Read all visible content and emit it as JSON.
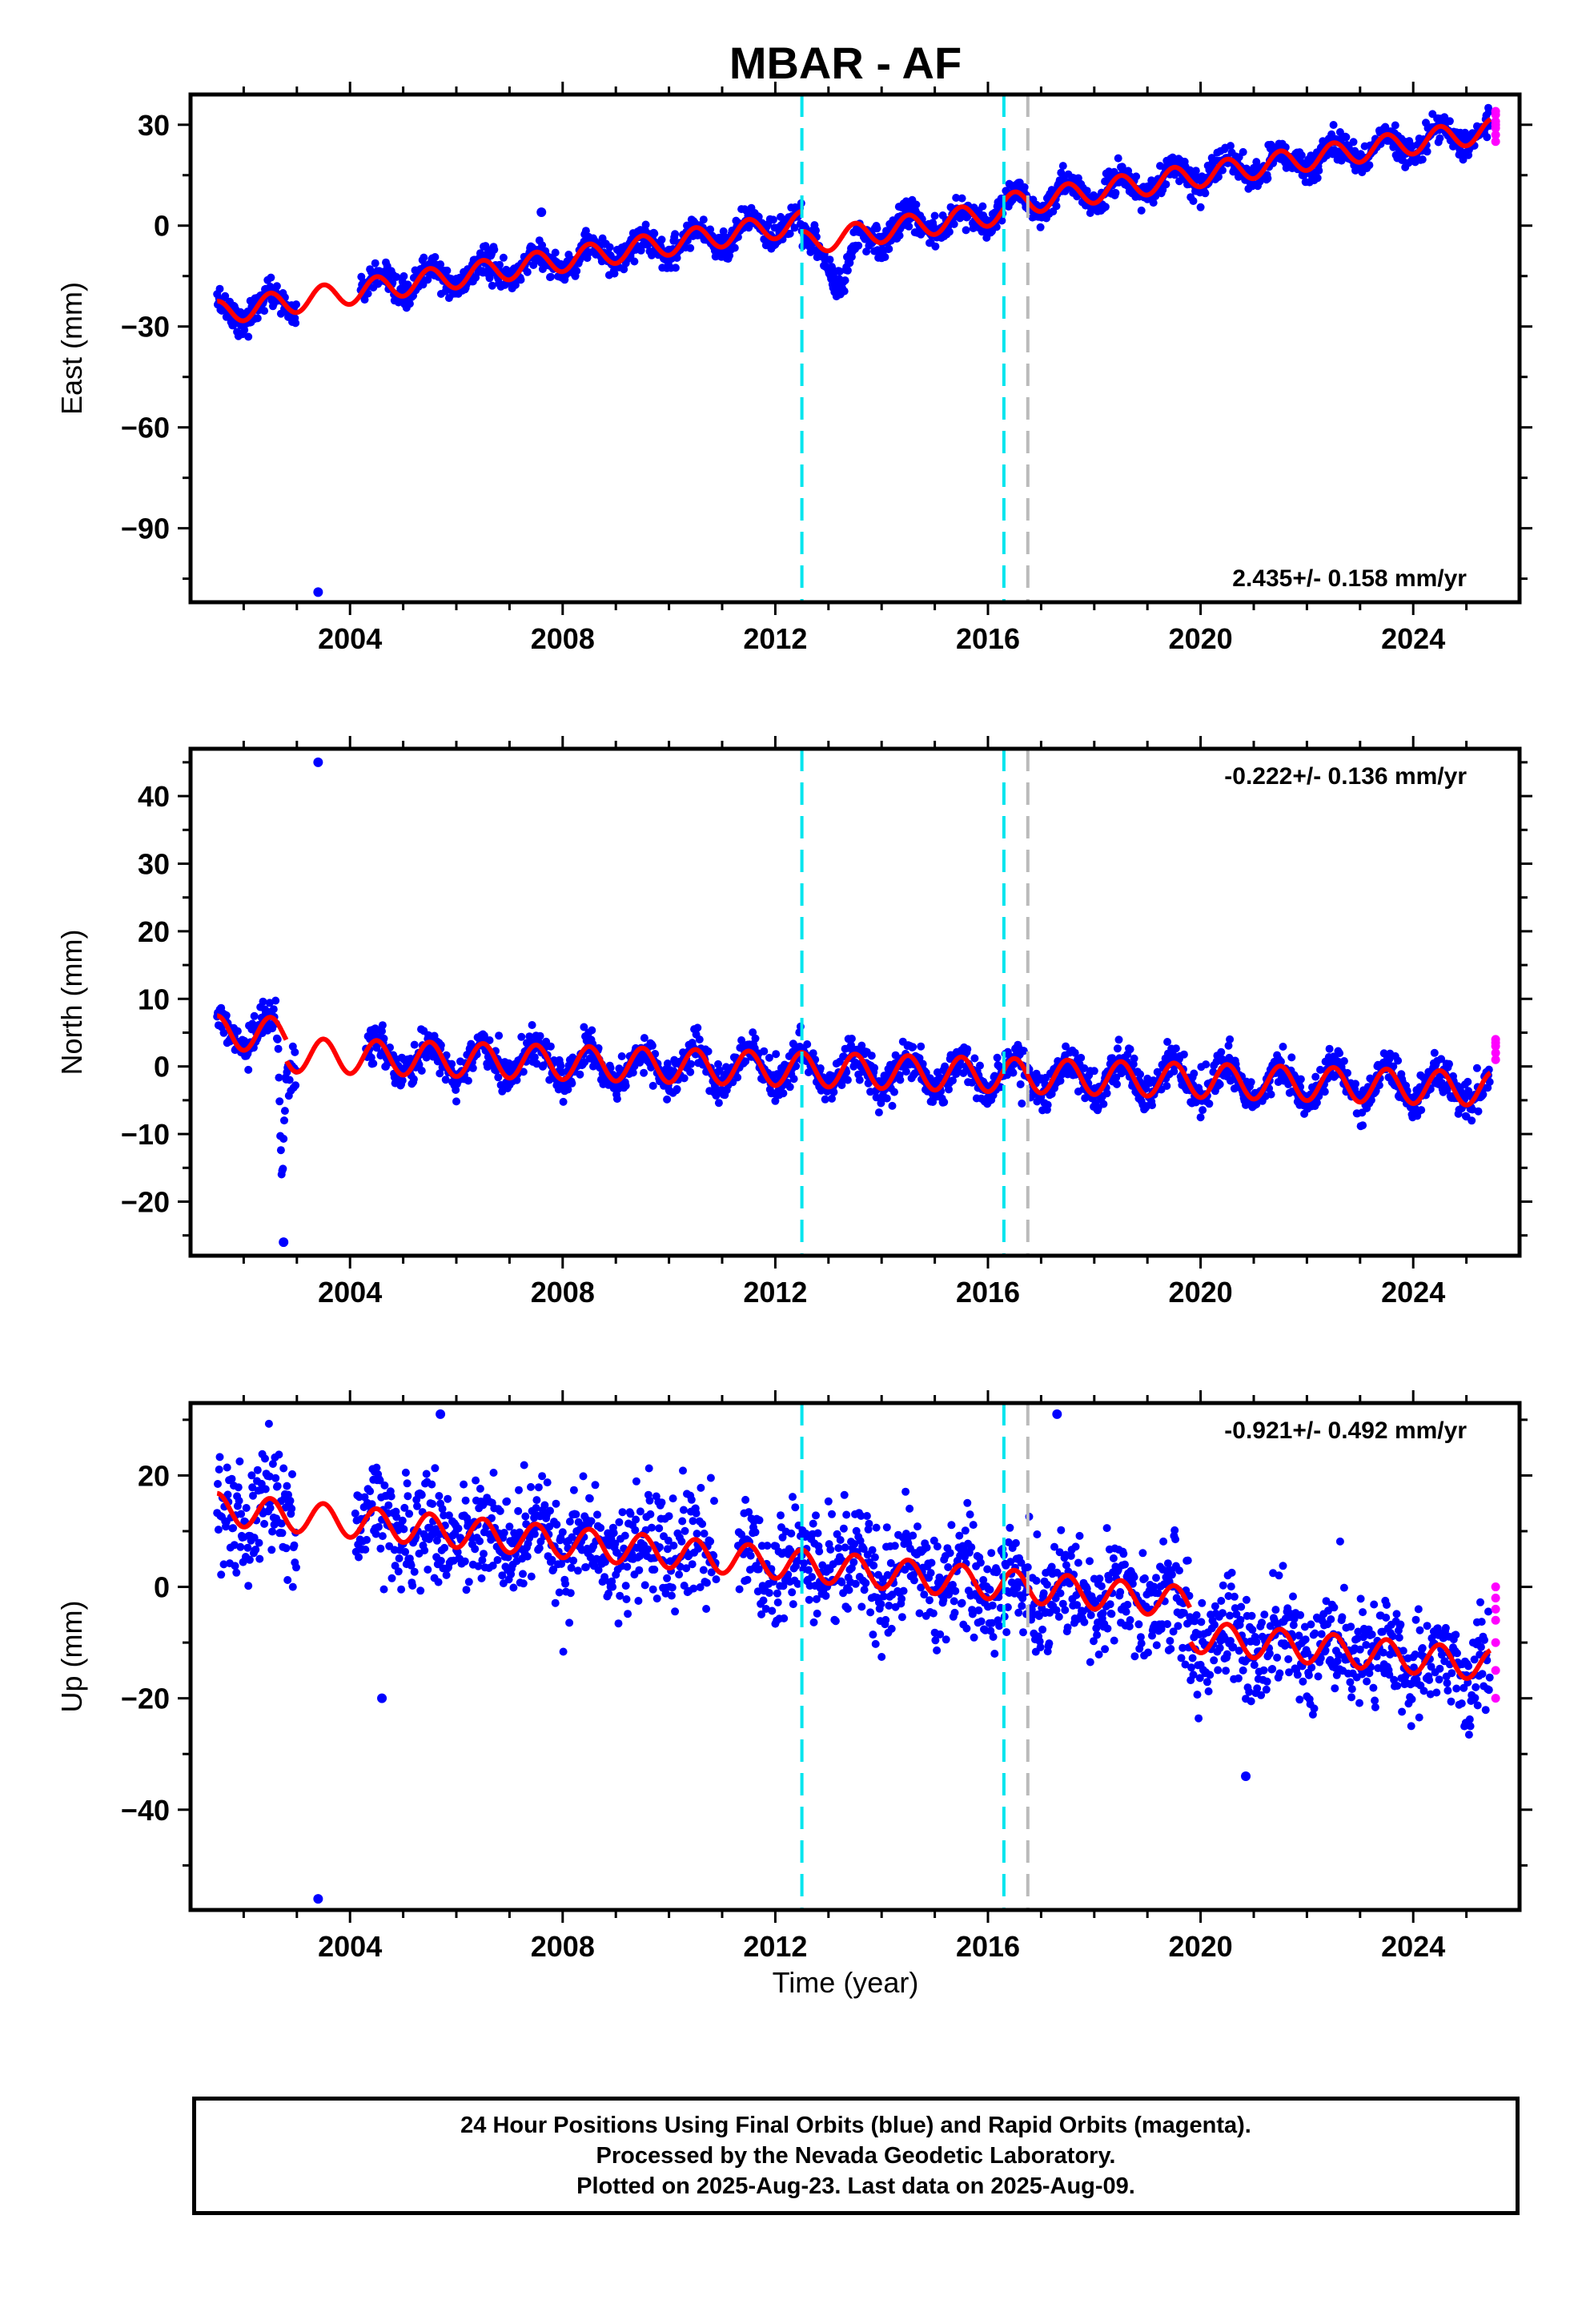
{
  "title": "MBAR - AF",
  "chart_data": {
    "type": "scatter",
    "title": "MBAR - AF",
    "xlabel": "Time (year)",
    "xlim": [
      2001.0,
      2026.0
    ],
    "x_ticks": [
      2004,
      2008,
      2012,
      2016,
      2020,
      2024
    ],
    "event_lines": [
      {
        "x": 2012.5,
        "color": "#00e5ee",
        "style": "dashed"
      },
      {
        "x": 2016.3,
        "color": "#00e5ee",
        "style": "dashed"
      },
      {
        "x": 2016.75,
        "color": "#bbbbbb",
        "style": "dashed"
      }
    ],
    "series_colors": {
      "final": "#0000ff",
      "rapid": "#ff00ff",
      "model": "#ff0000"
    },
    "panels": [
      {
        "id": "east",
        "ylabel": "East (mm)",
        "ylim": [
          -112,
          39
        ],
        "y_ticks": [
          30,
          0,
          -30,
          -60,
          -90
        ],
        "rate_text": "2.435+/- 0.158 mm/yr",
        "rate_position": "bottom-right",
        "data_start": 2001.5,
        "data_end": 2025.45,
        "trend": {
          "anchor_x": 2001.5,
          "anchor_y": -26,
          "slope": 2.435
        },
        "seasonal_amplitude": 3.5,
        "scatter": 2.2,
        "offsets": [
          {
            "x": 2012.5,
            "dy": -6
          },
          {
            "x": 2016.3,
            "dy": 2
          }
        ],
        "transients": [
          {
            "x": 2013.25,
            "depth": -14,
            "width": 0.25
          }
        ],
        "gaps": [
          [
            2003.0,
            2004.2
          ]
        ],
        "outliers": [
          {
            "x": 2003.4,
            "y": -109
          },
          {
            "x": 2007.6,
            "y": 4
          }
        ],
        "rapid_points": [
          34,
          31,
          29,
          27,
          25,
          33,
          30
        ],
        "rapid_x": 2025.55
      },
      {
        "id": "north",
        "ylabel": "North (mm)",
        "ylim": [
          -28,
          47
        ],
        "y_ticks": [
          40,
          30,
          20,
          10,
          0,
          -10,
          -20
        ],
        "rate_text": "-0.222+/- 0.136 mm/yr",
        "rate_position": "top-right",
        "data_start": 2001.5,
        "data_end": 2025.45,
        "trend": {
          "anchor_x": 2001.5,
          "anchor_y": 5,
          "slope": -0.222
        },
        "seasonal_amplitude": 2.5,
        "scatter": 1.4,
        "offsets": [
          {
            "x": 2002.8,
            "dy": -3
          }
        ],
        "transients": [
          {
            "x": 2002.72,
            "depth": -22,
            "width": 0.06
          }
        ],
        "gaps": [
          [
            2003.0,
            2004.3
          ]
        ],
        "outliers": [
          {
            "x": 2003.4,
            "y": 45
          },
          {
            "x": 2002.75,
            "y": -26
          }
        ],
        "rapid_points": [
          4,
          3,
          2,
          1,
          3.5
        ],
        "rapid_x": 2025.55
      },
      {
        "id": "up",
        "ylabel": "Up (mm)",
        "ylim": [
          -58,
          33
        ],
        "y_ticks": [
          20,
          0,
          -20,
          -40
        ],
        "rate_text": "-0.921+/- 0.492 mm/yr",
        "rate_position": "top-right",
        "data_start": 2001.5,
        "data_end": 2025.45,
        "trend": {
          "anchor_x": 2001.5,
          "anchor_y": 14,
          "slope": -0.921
        },
        "seasonal_amplitude": 2.8,
        "scatter": 5.0,
        "offsets": [
          {
            "x": 2019.8,
            "dy": -6
          }
        ],
        "transients": [],
        "gaps": [
          [
            2003.0,
            2004.1
          ],
          [
            2010.9,
            2011.3
          ]
        ],
        "outliers": [
          {
            "x": 2003.4,
            "y": -56
          },
          {
            "x": 2005.7,
            "y": 31
          },
          {
            "x": 2017.3,
            "y": 31
          },
          {
            "x": 2020.85,
            "y": -34
          },
          {
            "x": 2004.6,
            "y": -20
          }
        ],
        "rapid_points": [
          0,
          -2,
          -4,
          -6,
          -10,
          -15,
          -20
        ],
        "rapid_x": 2025.55
      }
    ]
  },
  "footer": {
    "line1": "24 Hour Positions Using Final Orbits (blue) and Rapid Orbits (magenta).",
    "line2": "Processed by the Nevada Geodetic Laboratory.",
    "line3": "Plotted on 2025-Aug-23. Last data on 2025-Aug-09."
  }
}
